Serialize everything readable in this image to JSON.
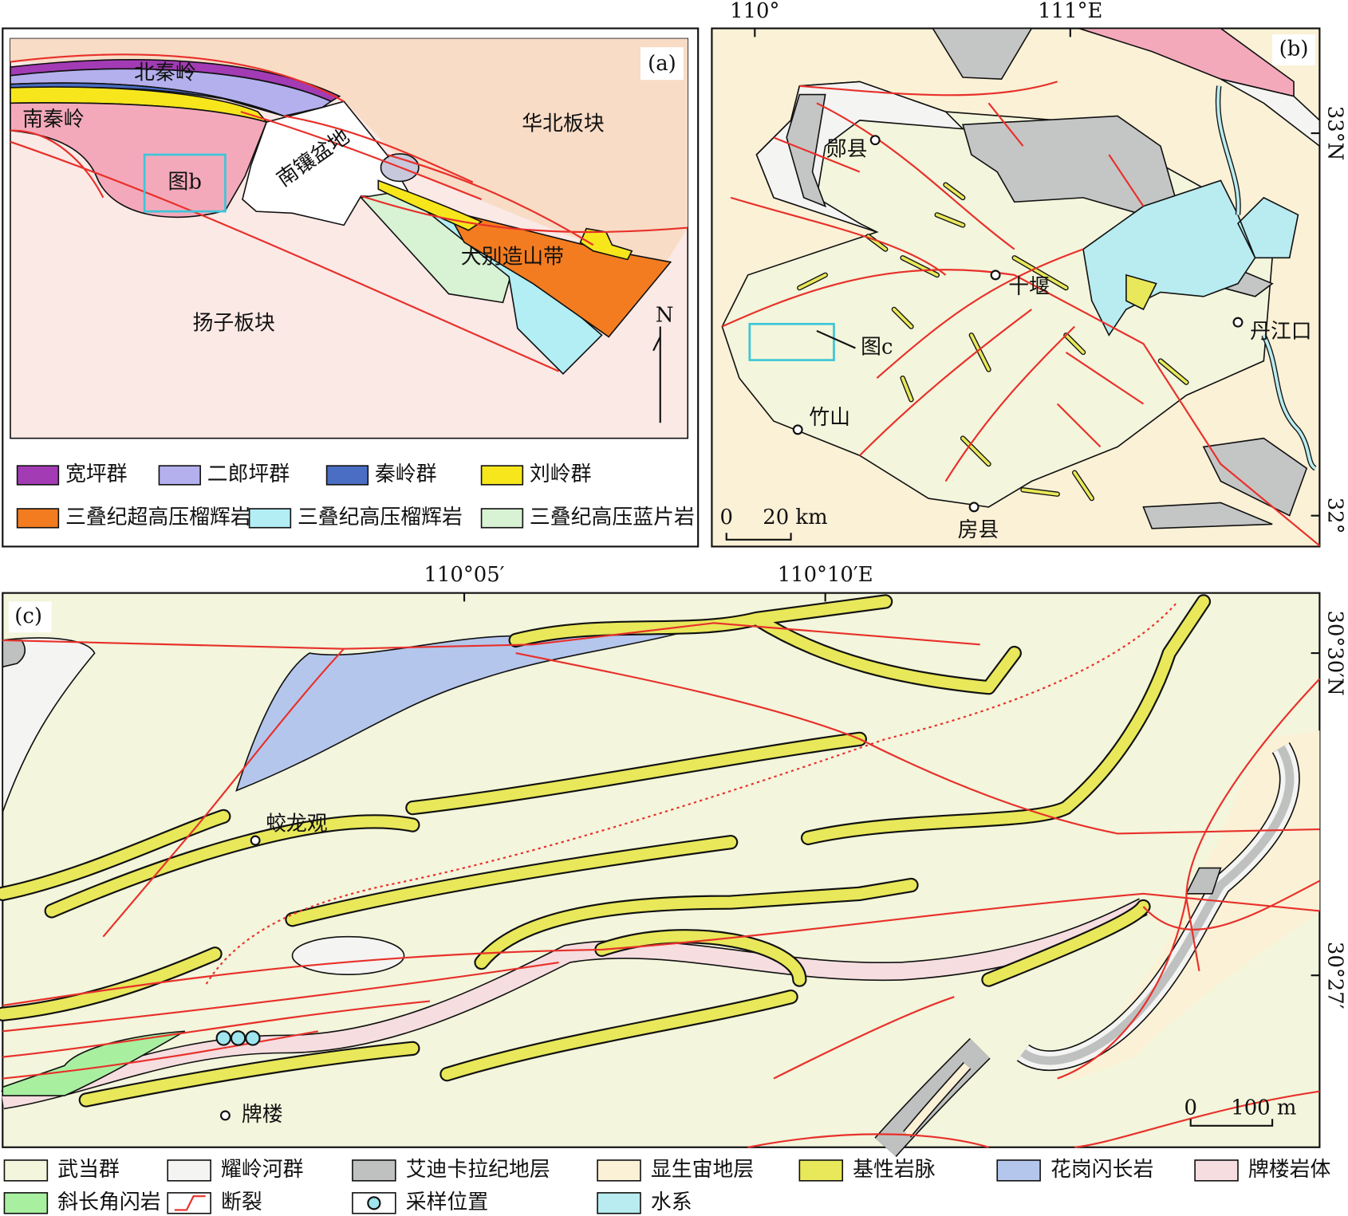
{
  "panel_a": {
    "label": "(a)",
    "places": [
      "北秦岭",
      "南秦岭",
      "华北板块",
      "南镶盆地",
      "图b",
      "大别造山带",
      "扬子板块"
    ],
    "north": "N",
    "legend": [
      "宽坪群",
      "二郎坪群",
      "秦岭群",
      "刘岭群",
      "三叠纪超高压榴辉岩",
      "三叠纪高压榴辉岩",
      "三叠纪高压蓝片岩"
    ]
  },
  "panel_b": {
    "label": "(b)",
    "lon_ticks": [
      "110°",
      "111°E"
    ],
    "lat_ticks": [
      "33°N",
      "32°"
    ],
    "places": [
      "郧县",
      "十堰",
      "丹江口",
      "竹山",
      "房县",
      "图c"
    ],
    "scale": [
      "0",
      "20 km"
    ]
  },
  "panel_c": {
    "label": "(c)",
    "lon_ticks": [
      "110°05′",
      "110°10′E"
    ],
    "lat_ticks": [
      "30°30′N",
      "30°27′"
    ],
    "places": [
      "蛟龙观",
      "牌楼"
    ],
    "scale": [
      "0",
      "100 m"
    ],
    "legend": [
      "武当群",
      "耀岭河群",
      "艾迪卡拉纪地层",
      "显生宙地层",
      "基性岩脉",
      "花岗闪长岩",
      "牌楼岩体",
      "斜长角闪岩",
      "断裂",
      "采样位置",
      "水系"
    ]
  }
}
